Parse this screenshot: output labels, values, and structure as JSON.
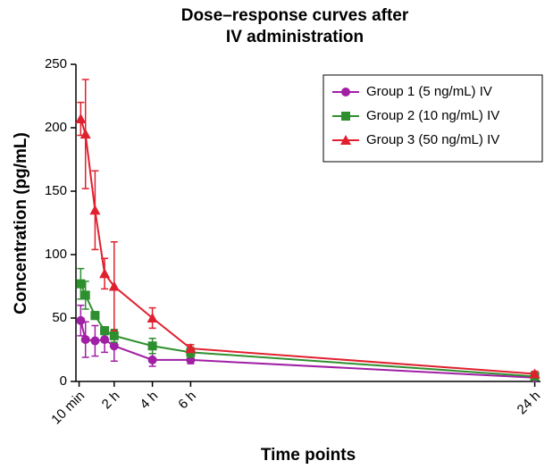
{
  "chart_data": {
    "type": "line",
    "title": [
      "Dose–response curves after",
      "IV administration"
    ],
    "x_label": "Time points",
    "y_label": "Concentration (pg/mL)",
    "xlim": [
      0,
      24.3
    ],
    "ylim": [
      0,
      250
    ],
    "xticks": [
      {
        "value": 0.1667,
        "label": "10 min"
      },
      {
        "value": 2,
        "label": "2 h"
      },
      {
        "value": 4,
        "label": "4 h"
      },
      {
        "value": 6,
        "label": "6 h"
      },
      {
        "value": 24,
        "label": "24 h"
      }
    ],
    "yticks": [
      0,
      50,
      100,
      150,
      200,
      250
    ],
    "x": [
      0.25,
      0.5,
      1,
      1.5,
      2,
      4,
      6,
      24
    ],
    "legend": "upper right",
    "series": [
      {
        "name": "Group 1 (5 ng/mL) IV",
        "color": "#a01fa5",
        "marker": "circle",
        "values": [
          48,
          33,
          32,
          33,
          28,
          17,
          17,
          3
        ],
        "errors": [
          12,
          14,
          12,
          10,
          12,
          5,
          3,
          1
        ]
      },
      {
        "name": "Group 2 (10 ng/mL) IV",
        "color": "#2e8f2e",
        "marker": "square",
        "values": [
          77,
          68,
          52,
          40,
          36,
          28,
          23,
          4
        ],
        "errors": [
          12,
          11,
          3,
          3,
          5,
          6,
          4,
          1
        ]
      },
      {
        "name": "Group 3 (50 ng/mL) IV",
        "color": "#e0202e",
        "marker": "triangle",
        "values": [
          207,
          195,
          135,
          85,
          75,
          50,
          26,
          6
        ],
        "errors": [
          13,
          43,
          31,
          12,
          35,
          8,
          3,
          2
        ]
      }
    ]
  }
}
